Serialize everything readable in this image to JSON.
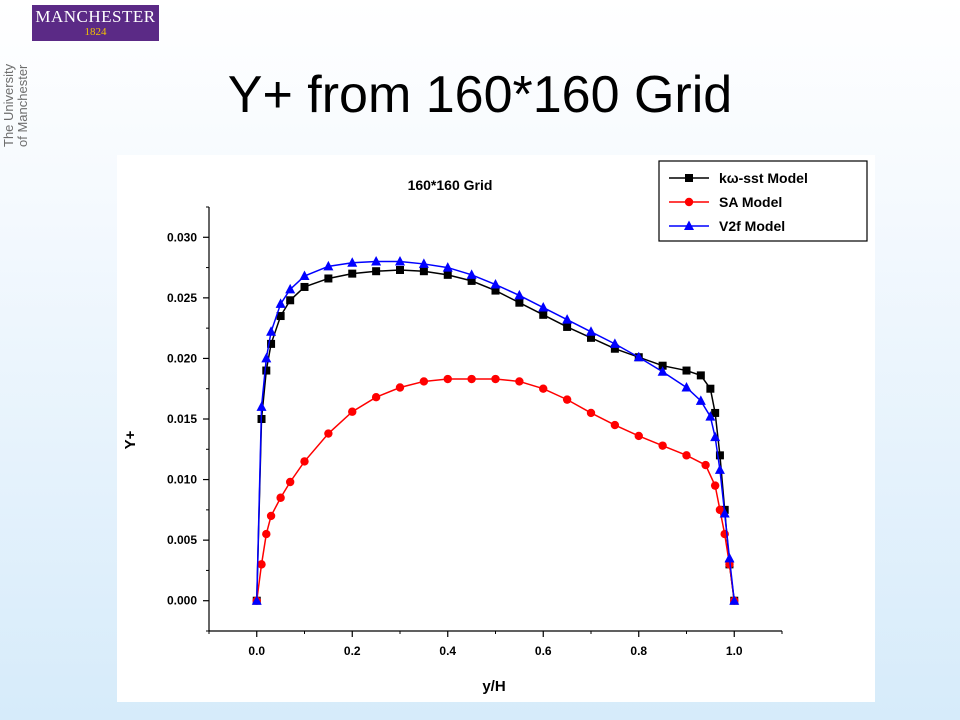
{
  "logo": {
    "line1": "MANCHESTER",
    "line2": "1824"
  },
  "university": {
    "line1": "The University",
    "line2": "of Manchester"
  },
  "slide": {
    "title": "Y+ from 160*160 Grid"
  },
  "chart_data": {
    "type": "line",
    "title": "160*160 Grid",
    "xlabel": "y/H",
    "ylabel": "Y+",
    "xlim": [
      -0.1,
      1.1
    ],
    "ylim": [
      -0.0025,
      0.0325
    ],
    "xticks": [
      "0.0",
      "0.2",
      "0.4",
      "0.6",
      "0.8",
      "1.0"
    ],
    "yticks": [
      "0.000",
      "0.005",
      "0.010",
      "0.015",
      "0.020",
      "0.025",
      "0.030"
    ],
    "legend_position": "top-right",
    "grid": false,
    "series": [
      {
        "name": "kω-sst Model",
        "color": "#000000",
        "marker": "square",
        "x": [
          0.0,
          0.01,
          0.02,
          0.03,
          0.05,
          0.07,
          0.1,
          0.15,
          0.2,
          0.25,
          0.3,
          0.35,
          0.4,
          0.45,
          0.5,
          0.55,
          0.6,
          0.65,
          0.7,
          0.75,
          0.8,
          0.85,
          0.9,
          0.93,
          0.95,
          0.96,
          0.97,
          0.98,
          0.99,
          1.0
        ],
        "y": [
          0.0,
          0.015,
          0.019,
          0.0212,
          0.0235,
          0.0248,
          0.0259,
          0.0266,
          0.027,
          0.0272,
          0.0273,
          0.0272,
          0.0269,
          0.0264,
          0.0256,
          0.0246,
          0.0236,
          0.0226,
          0.0217,
          0.0208,
          0.0201,
          0.0194,
          0.019,
          0.0186,
          0.0175,
          0.0155,
          0.012,
          0.0075,
          0.003,
          0.0
        ]
      },
      {
        "name": "SA Model",
        "color": "#ff0000",
        "marker": "circle",
        "x": [
          0.0,
          0.01,
          0.02,
          0.03,
          0.05,
          0.07,
          0.1,
          0.15,
          0.2,
          0.25,
          0.3,
          0.35,
          0.4,
          0.45,
          0.5,
          0.55,
          0.6,
          0.65,
          0.7,
          0.75,
          0.8,
          0.85,
          0.9,
          0.94,
          0.96,
          0.97,
          0.98,
          0.99,
          1.0
        ],
        "y": [
          0.0,
          0.003,
          0.0055,
          0.007,
          0.0085,
          0.0098,
          0.0115,
          0.0138,
          0.0156,
          0.0168,
          0.0176,
          0.0181,
          0.0183,
          0.0183,
          0.0183,
          0.0181,
          0.0175,
          0.0166,
          0.0155,
          0.0145,
          0.0136,
          0.0128,
          0.012,
          0.0112,
          0.0095,
          0.0075,
          0.0055,
          0.003,
          0.0
        ]
      },
      {
        "name": "V2f Model",
        "color": "#0000ff",
        "marker": "triangle",
        "x": [
          0.0,
          0.01,
          0.02,
          0.03,
          0.05,
          0.07,
          0.1,
          0.15,
          0.2,
          0.25,
          0.3,
          0.35,
          0.4,
          0.45,
          0.5,
          0.55,
          0.6,
          0.65,
          0.7,
          0.75,
          0.8,
          0.85,
          0.9,
          0.93,
          0.95,
          0.96,
          0.97,
          0.98,
          0.99,
          1.0
        ],
        "y": [
          0.0,
          0.016,
          0.02,
          0.0222,
          0.0245,
          0.0257,
          0.0268,
          0.0276,
          0.0279,
          0.028,
          0.028,
          0.0278,
          0.0275,
          0.0269,
          0.0261,
          0.0252,
          0.0242,
          0.0232,
          0.0222,
          0.0212,
          0.0201,
          0.0189,
          0.0176,
          0.0165,
          0.0152,
          0.0135,
          0.0108,
          0.0072,
          0.0035,
          0.0
        ]
      }
    ]
  }
}
